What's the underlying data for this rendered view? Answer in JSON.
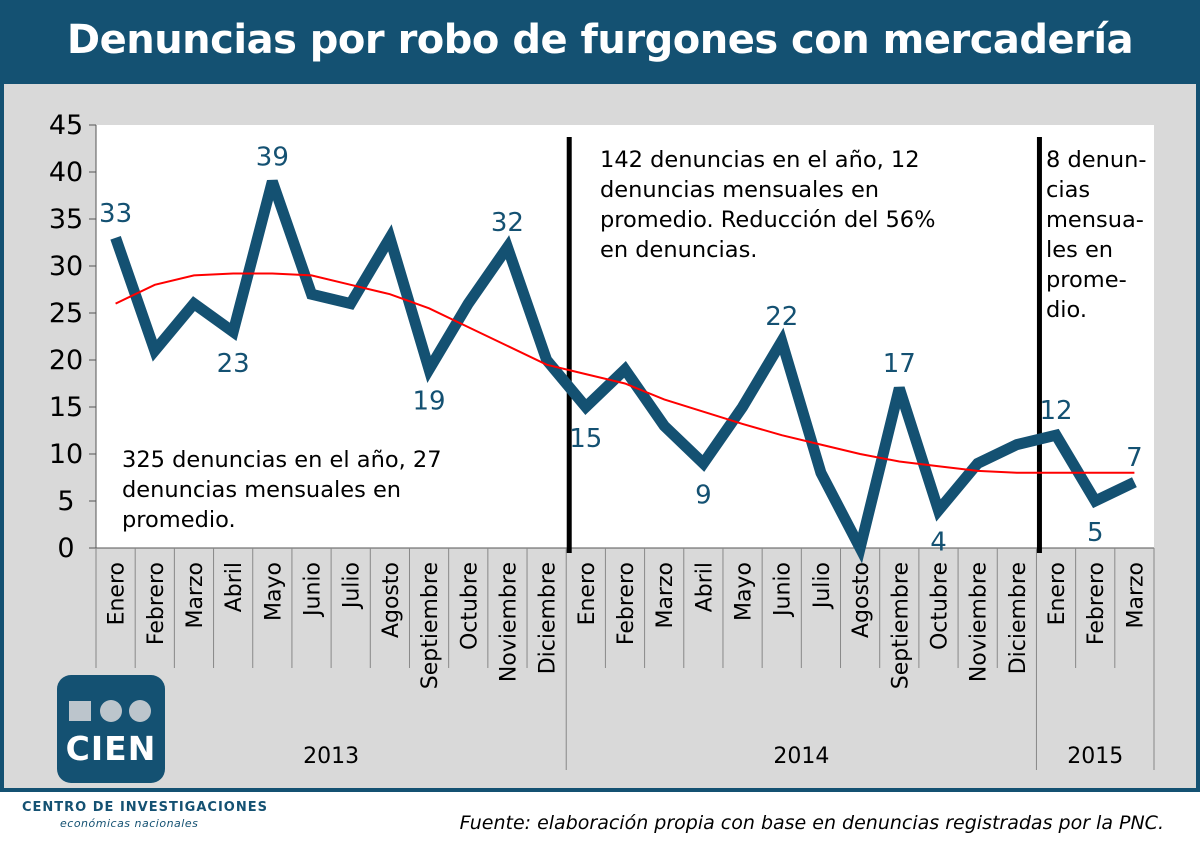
{
  "title": "Denuncias por robo de furgones con mercadería",
  "chart_data": {
    "type": "line",
    "ylim": [
      0,
      45
    ],
    "yticks": [
      0,
      5,
      10,
      15,
      20,
      25,
      30,
      35,
      40,
      45
    ],
    "categories": [
      "Enero",
      "Febrero",
      "Marzo",
      "Abril",
      "Mayo",
      "Junio",
      "Julio",
      "Agosto",
      "Septiembre",
      "Octubre",
      "Noviembre",
      "Diciembre",
      "Enero",
      "Febrero",
      "Marzo",
      "Abril",
      "Mayo",
      "Junio",
      "Julio",
      "Agosto",
      "Septiembre",
      "Octubre",
      "Noviembre",
      "Diciembre",
      "Enero",
      "Febrero",
      "Marzo"
    ],
    "years": [
      {
        "label": "2013",
        "start": 0,
        "end": 11
      },
      {
        "label": "2014",
        "start": 12,
        "end": 23
      },
      {
        "label": "2015",
        "start": 24,
        "end": 26
      }
    ],
    "series": [
      {
        "values": [
          33,
          21,
          26,
          23,
          39,
          27,
          26,
          33,
          19,
          26,
          32,
          20,
          15,
          19,
          13,
          9,
          15,
          22,
          8,
          0,
          17,
          4,
          9,
          11,
          12,
          5,
          7
        ],
        "color": "#145172"
      },
      {
        "values": [
          26,
          28,
          29,
          29.2,
          29.2,
          29,
          28,
          27,
          25.5,
          23.5,
          21.5,
          19.5,
          18.5,
          17.5,
          15.8,
          14.5,
          13.2,
          12,
          11,
          10,
          9.2,
          8.7,
          8.2,
          8,
          8,
          8,
          8
        ],
        "color": "#ff0000"
      }
    ],
    "data_labels": [
      {
        "index": 0,
        "text": "33"
      },
      {
        "index": 3,
        "text": "23"
      },
      {
        "index": 4,
        "text": "39"
      },
      {
        "index": 8,
        "text": "19"
      },
      {
        "index": 10,
        "text": "32"
      },
      {
        "index": 12,
        "text": "15"
      },
      {
        "index": 15,
        "text": "9"
      },
      {
        "index": 17,
        "text": "22"
      },
      {
        "index": 20,
        "text": "17"
      },
      {
        "index": 21,
        "text": "4"
      },
      {
        "index": 24,
        "text": "12"
      },
      {
        "index": 25,
        "text": "5"
      },
      {
        "index": 26,
        "text": "7"
      }
    ],
    "annotations": [
      {
        "lines": [
          "325 denuncias en el año, 27",
          "denuncias mensuales en",
          "promedio."
        ]
      },
      {
        "lines": [
          "142 denuncias en el año, 12",
          "denuncias mensuales en",
          "promedio. Reducción del 56%",
          "en denuncias."
        ]
      },
      {
        "lines": [
          "8 denun-",
          "cias",
          "mensua-",
          "les en",
          "prome-",
          "dio."
        ]
      }
    ]
  },
  "logo": {
    "text": "CIEN"
  },
  "org": {
    "line1": "CENTRO DE INVESTIGACIONES",
    "line2": "económicas nacionales"
  },
  "source": "Fuente: elaboración propia con base en denuncias registradas por la PNC.",
  "colors": {
    "brand": "#145172",
    "trend": "#ff0000"
  }
}
